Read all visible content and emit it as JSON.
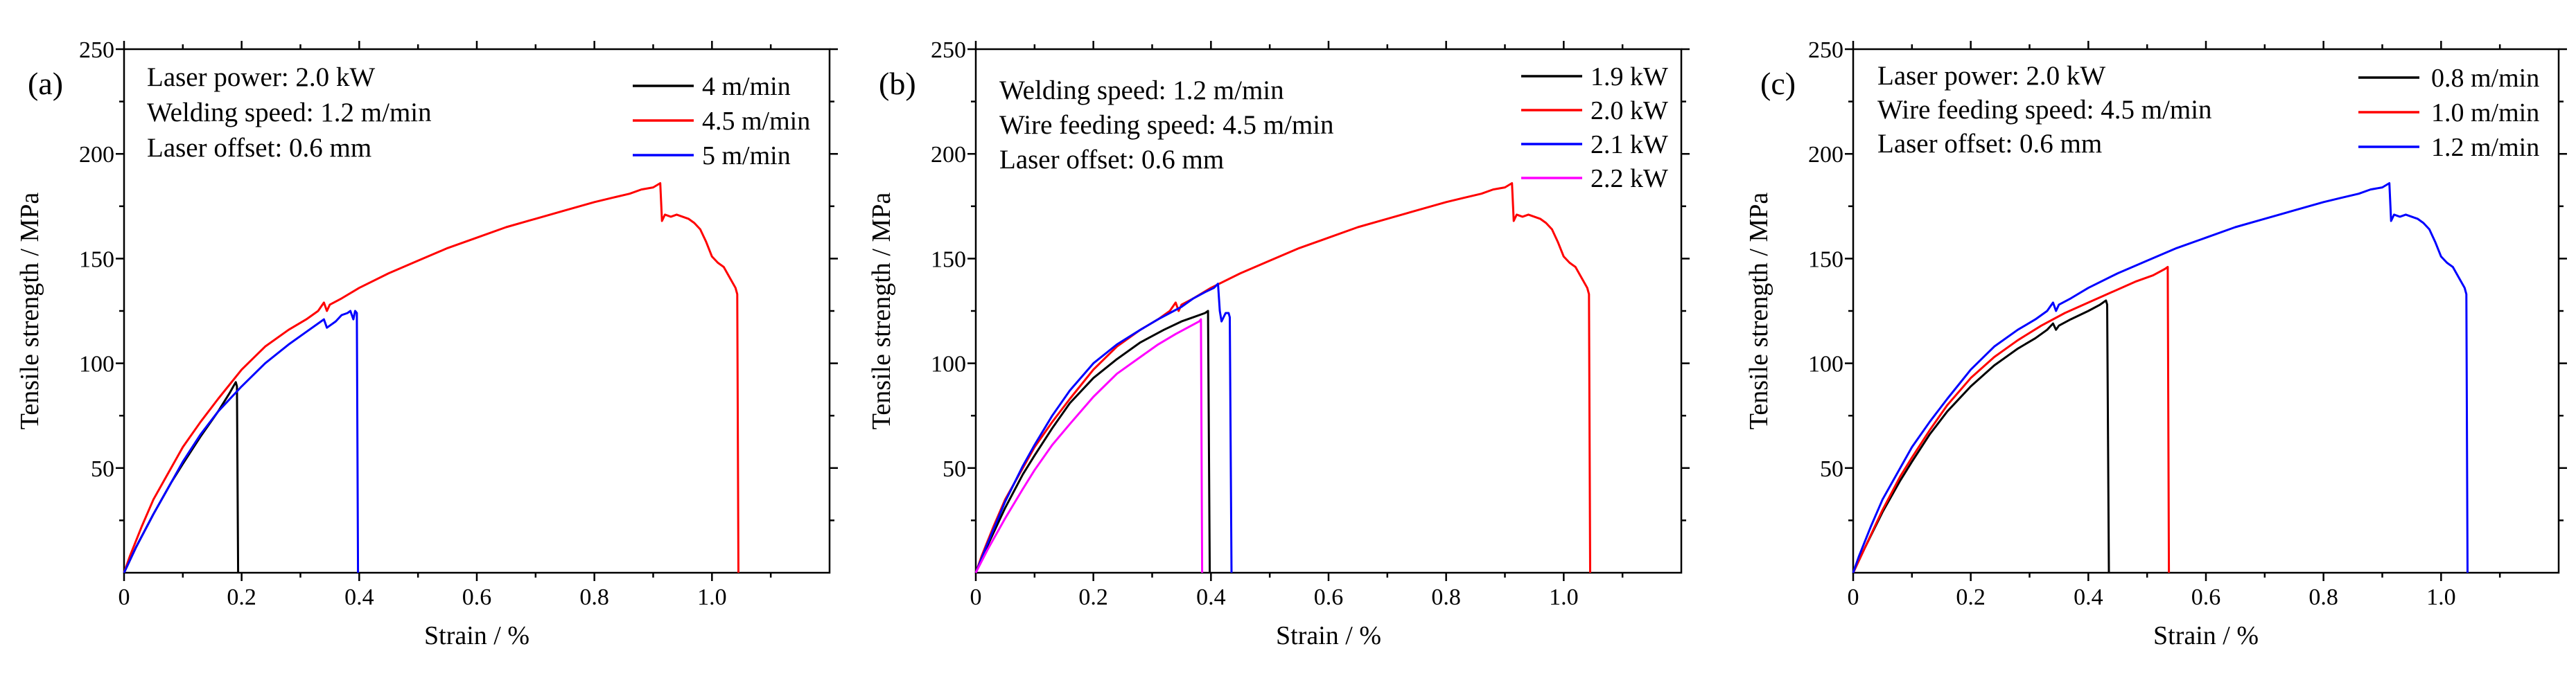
{
  "chart_data": [
    {
      "type": "line",
      "panel_label": "(a)",
      "annotations": [
        "Laser power: 2.0 kW",
        "Welding speed: 1.2 m/min",
        "Laser offset: 0.6 mm"
      ],
      "xlabel": "Strain / %",
      "ylabel": "Tensile strength / MPa",
      "xlim": [
        0,
        1.2
      ],
      "ylim": [
        0,
        250
      ],
      "xticks": [
        0,
        0.2,
        0.4,
        0.6,
        0.8,
        1.0
      ],
      "xtick_labels": [
        "0",
        "0.2",
        "0.4",
        "0.6",
        "0.8",
        "1.0"
      ],
      "yticks": [
        50,
        100,
        150,
        200,
        250
      ],
      "ytick_labels": [
        "50",
        "100",
        "150",
        "200",
        "250"
      ],
      "grid": false,
      "legend_position": "top-right",
      "series": [
        {
          "name": "4 m/min",
          "color": "#000000",
          "x": [
            0,
            0.02,
            0.05,
            0.08,
            0.1,
            0.13,
            0.16,
            0.18,
            0.19,
            0.192,
            0.194
          ],
          "y": [
            0,
            12,
            28,
            43,
            52,
            65,
            77,
            86,
            91,
            89,
            0
          ]
        },
        {
          "name": "4.5 m/min",
          "color": "#ff0000",
          "x": [
            0,
            0.01,
            0.02,
            0.03,
            0.05,
            0.07,
            0.1,
            0.13,
            0.16,
            0.2,
            0.24,
            0.28,
            0.31,
            0.33,
            0.34,
            0.345,
            0.35,
            0.37,
            0.4,
            0.45,
            0.5,
            0.55,
            0.6,
            0.65,
            0.7,
            0.75,
            0.8,
            0.83,
            0.86,
            0.88,
            0.9,
            0.912,
            0.915,
            0.92,
            0.93,
            0.94,
            0.95,
            0.96,
            0.97,
            0.98,
            0.99,
            1.0,
            1.01,
            1.02,
            1.03,
            1.04,
            1.043,
            1.045
          ],
          "y": [
            0,
            8,
            15,
            22,
            35,
            45,
            60,
            72,
            83,
            97,
            108,
            116,
            121,
            125,
            129,
            125,
            128,
            131,
            136,
            143,
            149,
            155,
            160,
            165,
            169,
            173,
            177,
            179,
            181,
            183,
            184,
            186,
            168,
            171,
            170,
            171,
            170,
            169,
            167,
            164,
            158,
            151,
            148,
            146,
            141,
            136,
            133,
            0
          ]
        },
        {
          "name": "5 m/min",
          "color": "#0000ff",
          "x": [
            0,
            0.02,
            0.05,
            0.08,
            0.1,
            0.13,
            0.16,
            0.2,
            0.24,
            0.28,
            0.31,
            0.33,
            0.34,
            0.345,
            0.35,
            0.36,
            0.37,
            0.38,
            0.385,
            0.39,
            0.393,
            0.396,
            0.398
          ],
          "y": [
            0,
            12,
            28,
            43,
            53,
            66,
            77,
            89,
            100,
            109,
            115,
            119,
            121,
            117,
            118,
            120,
            123,
            124,
            125,
            121,
            125,
            124,
            0
          ]
        }
      ]
    },
    {
      "type": "line",
      "panel_label": "(b)",
      "annotations": [
        "Welding speed: 1.2 m/min",
        "Wire feeding speed: 4.5 m/min",
        "Laser offset: 0.6 mm"
      ],
      "xlabel": "Strain / %",
      "ylabel": "Tensile strength / MPa",
      "xlim": [
        0,
        1.2
      ],
      "ylim": [
        0,
        250
      ],
      "xticks": [
        0,
        0.2,
        0.4,
        0.6,
        0.8,
        1.0
      ],
      "xtick_labels": [
        "0",
        "0.2",
        "0.4",
        "0.6",
        "0.8",
        "1.0"
      ],
      "yticks": [
        50,
        100,
        150,
        200,
        250
      ],
      "ytick_labels": [
        "50",
        "100",
        "150",
        "200",
        "250"
      ],
      "grid": false,
      "legend_position": "top-right",
      "series": [
        {
          "name": "1.9 kW",
          "color": "#000000",
          "x": [
            0,
            0.02,
            0.05,
            0.08,
            0.1,
            0.13,
            0.16,
            0.2,
            0.24,
            0.28,
            0.32,
            0.35,
            0.37,
            0.39,
            0.395,
            0.398
          ],
          "y": [
            0,
            13,
            31,
            47,
            56,
            69,
            81,
            93,
            102,
            110,
            116,
            120,
            122,
            124,
            125,
            0
          ]
        },
        {
          "name": "2.0 kW",
          "color": "#ff0000",
          "x": [
            0,
            0.01,
            0.02,
            0.03,
            0.05,
            0.07,
            0.1,
            0.13,
            0.16,
            0.2,
            0.24,
            0.28,
            0.31,
            0.33,
            0.34,
            0.345,
            0.35,
            0.37,
            0.4,
            0.45,
            0.5,
            0.55,
            0.6,
            0.65,
            0.7,
            0.75,
            0.8,
            0.83,
            0.86,
            0.88,
            0.9,
            0.912,
            0.915,
            0.92,
            0.93,
            0.94,
            0.95,
            0.96,
            0.97,
            0.98,
            0.99,
            1.0,
            1.01,
            1.02,
            1.03,
            1.04,
            1.043,
            1.045
          ],
          "y": [
            0,
            8,
            15,
            22,
            35,
            45,
            60,
            72,
            83,
            97,
            108,
            116,
            121,
            125,
            129,
            125,
            128,
            131,
            136,
            143,
            149,
            155,
            160,
            165,
            169,
            173,
            177,
            179,
            181,
            183,
            184,
            186,
            168,
            171,
            170,
            171,
            170,
            169,
            167,
            164,
            158,
            151,
            148,
            146,
            141,
            136,
            133,
            0
          ]
        },
        {
          "name": "2.1 kW",
          "color": "#0000ff",
          "x": [
            0,
            0.02,
            0.05,
            0.08,
            0.1,
            0.13,
            0.16,
            0.2,
            0.24,
            0.28,
            0.31,
            0.33,
            0.35,
            0.37,
            0.39,
            0.405,
            0.412,
            0.415,
            0.418,
            0.425,
            0.43,
            0.432,
            0.435
          ],
          "y": [
            0,
            14,
            34,
            51,
            61,
            75,
            87,
            100,
            109,
            116,
            121,
            124,
            127,
            131,
            134,
            136,
            138,
            125,
            120,
            124,
            124,
            122,
            0
          ]
        },
        {
          "name": "2.2 kW",
          "color": "#ff00ff",
          "x": [
            0,
            0.02,
            0.05,
            0.08,
            0.1,
            0.13,
            0.16,
            0.2,
            0.24,
            0.28,
            0.31,
            0.34,
            0.36,
            0.38,
            0.383,
            0.385
          ],
          "y": [
            0,
            11,
            26,
            40,
            49,
            61,
            71,
            84,
            95,
            103,
            109,
            114,
            117,
            120,
            121,
            0
          ]
        }
      ]
    },
    {
      "type": "line",
      "panel_label": "(c)",
      "annotations": [
        "Laser power: 2.0 kW",
        "Wire feeding speed: 4.5 m/min",
        "Laser offset: 0.6 mm"
      ],
      "xlabel": "Strain / %",
      "ylabel": "Tensile strength / MPa",
      "xlim": [
        0,
        1.2
      ],
      "ylim": [
        0,
        250
      ],
      "xticks": [
        0,
        0.2,
        0.4,
        0.6,
        0.8,
        1.0
      ],
      "xtick_labels": [
        "0",
        "0.2",
        "0.4",
        "0.6",
        "0.8",
        "1.0"
      ],
      "yticks": [
        50,
        100,
        150,
        200,
        250
      ],
      "ytick_labels": [
        "50",
        "100",
        "150",
        "200",
        "250"
      ],
      "grid": false,
      "legend_position": "top-right",
      "series": [
        {
          "name": "0.8 m/min",
          "color": "#000000",
          "x": [
            0,
            0.02,
            0.05,
            0.08,
            0.1,
            0.13,
            0.16,
            0.2,
            0.24,
            0.28,
            0.31,
            0.33,
            0.34,
            0.345,
            0.35,
            0.37,
            0.4,
            0.42,
            0.43,
            0.432,
            0.435
          ],
          "y": [
            0,
            12,
            29,
            44,
            53,
            66,
            77,
            89,
            99,
            107,
            112,
            116,
            119,
            116,
            118,
            121,
            125,
            128,
            130,
            128,
            0
          ]
        },
        {
          "name": "1.0 m/min",
          "color": "#ff0000",
          "x": [
            0,
            0.02,
            0.05,
            0.08,
            0.1,
            0.13,
            0.16,
            0.2,
            0.24,
            0.28,
            0.32,
            0.36,
            0.4,
            0.44,
            0.48,
            0.51,
            0.53,
            0.535,
            0.537
          ],
          "y": [
            0,
            12,
            30,
            46,
            55,
            68,
            80,
            93,
            103,
            111,
            118,
            124,
            129,
            134,
            139,
            142,
            145,
            146,
            0
          ]
        },
        {
          "name": "1.2 m/min",
          "color": "#0000ff",
          "x": [
            0,
            0.01,
            0.02,
            0.03,
            0.05,
            0.07,
            0.1,
            0.13,
            0.16,
            0.2,
            0.24,
            0.28,
            0.31,
            0.33,
            0.34,
            0.345,
            0.35,
            0.37,
            0.4,
            0.45,
            0.5,
            0.55,
            0.6,
            0.65,
            0.7,
            0.75,
            0.8,
            0.83,
            0.86,
            0.88,
            0.9,
            0.912,
            0.915,
            0.92,
            0.93,
            0.94,
            0.95,
            0.96,
            0.97,
            0.98,
            0.99,
            1.0,
            1.01,
            1.02,
            1.03,
            1.04,
            1.043,
            1.045
          ],
          "y": [
            0,
            8,
            15,
            22,
            35,
            45,
            60,
            72,
            83,
            97,
            108,
            116,
            121,
            125,
            129,
            125,
            128,
            131,
            136,
            143,
            149,
            155,
            160,
            165,
            169,
            173,
            177,
            179,
            181,
            183,
            184,
            186,
            168,
            171,
            170,
            171,
            170,
            169,
            167,
            164,
            158,
            151,
            148,
            146,
            141,
            136,
            133,
            0
          ]
        }
      ]
    }
  ]
}
